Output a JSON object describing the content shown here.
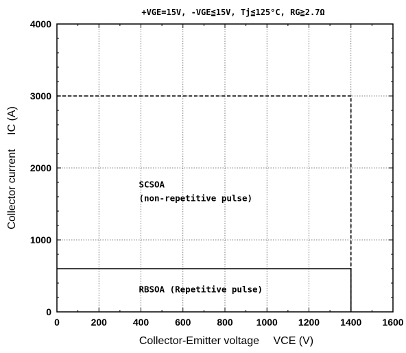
{
  "chart_data": {
    "type": "line",
    "title": "+VGE=15V, -VGE≦15V, Tj≦125°C, RG≧2.7Ω",
    "xlabel": "Collector-Emitter voltage　 VCE (V)",
    "ylabel": "Collector current　 IC (A)",
    "xlim": [
      0,
      1600
    ],
    "ylim": [
      0,
      4000
    ],
    "x_ticks": [
      0,
      200,
      400,
      600,
      800,
      1000,
      1200,
      1400,
      1600
    ],
    "y_ticks": [
      0,
      1000,
      2000,
      3000,
      4000
    ],
    "grid": true,
    "legend": "none",
    "series": [
      {
        "id": "scsoa",
        "style": "dashed",
        "color": "#000000",
        "x": [
          0,
          1400,
          1400
        ],
        "y": [
          3000,
          3000,
          0
        ]
      },
      {
        "id": "rbsoa",
        "style": "solid",
        "color": "#000000",
        "x": [
          0,
          1400,
          1400
        ],
        "y": [
          600,
          600,
          0
        ]
      }
    ],
    "annotations": [
      {
        "id": "scsoa-line1",
        "text": "SCSOA",
        "x": 390,
        "y": 1730
      },
      {
        "id": "scsoa-line2",
        "text": "(non-repetitive pulse)",
        "x": 390,
        "y": 1540
      },
      {
        "id": "rbsoa-label",
        "text": "RBSOA (Repetitive pulse)",
        "x": 390,
        "y": 270
      }
    ]
  }
}
